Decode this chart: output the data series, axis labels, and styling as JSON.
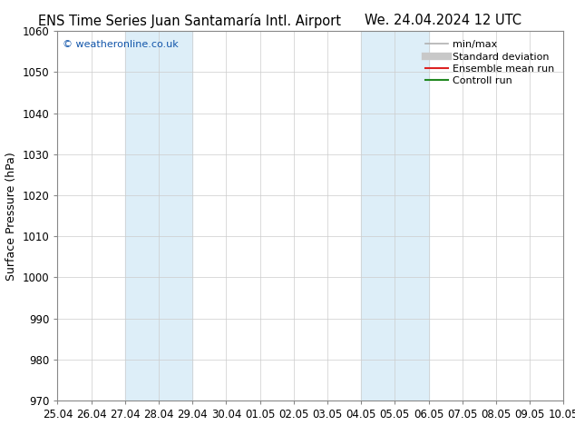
{
  "title_left": "ENS Time Series Juan Santamaría Intl. Airport",
  "title_right": "We. 24.04.2024 12 UTC",
  "ylabel": "Surface Pressure (hPa)",
  "ylim": [
    970,
    1060
  ],
  "yticks": [
    970,
    980,
    990,
    1000,
    1010,
    1020,
    1030,
    1040,
    1050,
    1060
  ],
  "xtick_labels": [
    "25.04",
    "26.04",
    "27.04",
    "28.04",
    "29.04",
    "30.04",
    "01.05",
    "02.05",
    "03.05",
    "04.05",
    "05.05",
    "06.05",
    "07.05",
    "08.05",
    "09.05",
    "10.05"
  ],
  "xtick_positions": [
    0,
    1,
    2,
    3,
    4,
    5,
    6,
    7,
    8,
    9,
    10,
    11,
    12,
    13,
    14,
    15
  ],
  "shaded_bands": [
    {
      "xstart": 2,
      "xend": 4,
      "color": "#ddeef8"
    },
    {
      "xstart": 9,
      "xend": 11,
      "color": "#ddeef8"
    }
  ],
  "watermark": "© weatheronline.co.uk",
  "watermark_color": "#1155aa",
  "legend_entries": [
    {
      "label": "min/max",
      "color": "#b0b0b0",
      "lw": 1.2
    },
    {
      "label": "Standard deviation",
      "color": "#c8c8c8",
      "lw": 6
    },
    {
      "label": "Ensemble mean run",
      "color": "#dd2222",
      "lw": 1.5
    },
    {
      "label": "Controll run",
      "color": "#228822",
      "lw": 1.5
    }
  ],
  "bg_color": "#ffffff",
  "plot_bg_color": "#ffffff",
  "grid_color": "#cccccc",
  "spine_color": "#888888",
  "title_fontsize": 10.5,
  "ylabel_fontsize": 9,
  "tick_fontsize": 8.5,
  "watermark_fontsize": 8,
  "legend_fontsize": 8
}
